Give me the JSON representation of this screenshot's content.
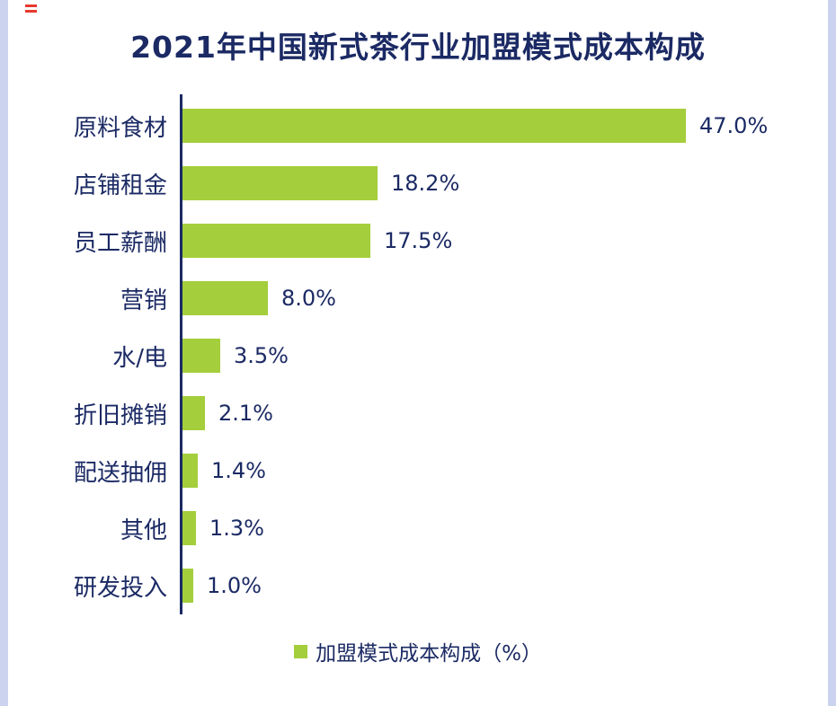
{
  "title": "2021年中国新式茶行业加盟模式成本构成",
  "colors": {
    "bar": "#a4ce3b",
    "text": "#1b2a64",
    "edge_strip": "#ccd3ee",
    "artifact_red": "#e8392e"
  },
  "legend": {
    "label": "加盟模式成本构成（%）"
  },
  "chart_data": {
    "type": "bar",
    "orientation": "horizontal",
    "title": "2021年中国新式茶行业加盟模式成本构成",
    "categories": [
      "原料食材",
      "店铺租金",
      "员工薪酬",
      "营销",
      "水/电",
      "折旧摊销",
      "配送抽佣",
      "其他",
      "研发投入"
    ],
    "values": [
      47.0,
      18.2,
      17.5,
      8.0,
      3.5,
      2.1,
      1.4,
      1.3,
      1.0
    ],
    "value_labels": [
      "47.0%",
      "18.2%",
      "17.5%",
      "8.0%",
      "3.5%",
      "2.1%",
      "1.4%",
      "1.3%",
      "1.0%"
    ],
    "xlabel": "",
    "ylabel": "",
    "xlim": [
      0,
      50
    ],
    "grid": false,
    "legend_entries": [
      "加盟模式成本构成（%）"
    ],
    "legend_position": "bottom"
  }
}
